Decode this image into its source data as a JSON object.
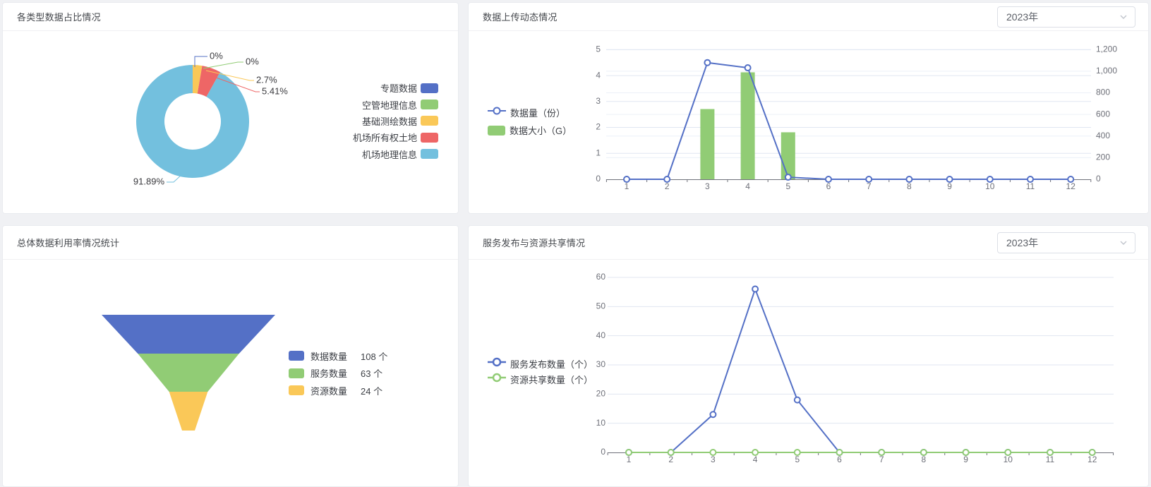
{
  "page": {
    "background": "#f0f1f4"
  },
  "palette": {
    "blue": "#5470C6",
    "green": "#91CC75",
    "yellow": "#FAC858",
    "red": "#EE6666",
    "light_blue": "#73C0DE"
  },
  "panels": {
    "pie": {
      "title": "各类型数据占比情况",
      "legend": [
        {
          "label": "专题数据",
          "color": "#5470C6"
        },
        {
          "label": "空管地理信息",
          "color": "#91CC75"
        },
        {
          "label": "基础测绘数据",
          "color": "#FAC858"
        },
        {
          "label": "机场所有权土地",
          "color": "#EE6666"
        },
        {
          "label": "机场地理信息",
          "color": "#73C0DE"
        }
      ]
    },
    "upload": {
      "title": "数据上传动态情况",
      "year_select": {
        "value": "2023年"
      },
      "legend": [
        {
          "label": "数据量（份）",
          "type": "line",
          "color": "#5470C6"
        },
        {
          "label": "数据大小（G）",
          "type": "bar",
          "color": "#91CC75"
        }
      ]
    },
    "funnel": {
      "title": "总体数据利用率情况统计",
      "legend": [
        {
          "label": "数据数量",
          "value": "108 个",
          "color": "#5470C6"
        },
        {
          "label": "服务数量",
          "value": "63 个",
          "color": "#91CC75"
        },
        {
          "label": "资源数量",
          "value": "24 个",
          "color": "#FAC858"
        }
      ]
    },
    "share": {
      "title": "服务发布与资源共享情况",
      "year_select": {
        "value": "2023年"
      },
      "legend": [
        {
          "label": "服务发布数量（个）",
          "color": "#5470C6"
        },
        {
          "label": "资源共享数量（个）",
          "color": "#91CC75"
        }
      ]
    }
  },
  "chart_data": [
    {
      "type": "pie",
      "title": "各类型数据占比情况",
      "labels": [
        "专题数据",
        "空管地理信息",
        "基础测绘数据",
        "机场所有权土地",
        "机场地理信息"
      ],
      "values_percent": [
        0,
        0,
        2.7,
        5.41,
        91.89
      ],
      "data_labels": [
        "0%",
        "0%",
        "2.7%",
        "5.41%",
        "91.89%"
      ],
      "colors": [
        "#5470C6",
        "#91CC75",
        "#FAC858",
        "#EE6666",
        "#73C0DE"
      ],
      "inner_radius_ratio": 0.5,
      "start_angle": "top",
      "direction": "clockwise",
      "legend_position": "right"
    },
    {
      "type": "bar+line",
      "title": "数据上传动态情况",
      "x": [
        1,
        2,
        3,
        4,
        5,
        6,
        7,
        8,
        9,
        10,
        11,
        12
      ],
      "series": [
        {
          "name": "数据量（份）",
          "type": "line",
          "axis": "left",
          "color": "#5470C6",
          "values": [
            0,
            0,
            4.5,
            4.3,
            0.08,
            0,
            0,
            0,
            0,
            0,
            0,
            0
          ]
        },
        {
          "name": "数据大小（G）",
          "type": "bar",
          "axis": "right",
          "color": "#91CC75",
          "values": [
            0,
            0,
            650,
            990,
            435,
            0,
            0,
            0,
            0,
            0,
            0,
            0
          ]
        }
      ],
      "left_axis": {
        "min": 0,
        "max": 5,
        "ticks": [
          0,
          1,
          2,
          3,
          4,
          5
        ]
      },
      "right_axis": {
        "min": 0,
        "max": 1200,
        "ticks": [
          "0",
          "200",
          "400",
          "600",
          "800",
          "1,000",
          "1,200"
        ]
      },
      "grid": true,
      "legend_position": "left"
    },
    {
      "type": "funnel",
      "title": "总体数据利用率情况统计",
      "labels": [
        "数据数量",
        "服务数量",
        "资源数量"
      ],
      "values": [
        108,
        63,
        24
      ],
      "unit": "个",
      "colors": [
        "#5470C6",
        "#91CC75",
        "#FAC858"
      ],
      "sort": "descending"
    },
    {
      "type": "line",
      "title": "服务发布与资源共享情况",
      "x": [
        1,
        2,
        3,
        4,
        5,
        6,
        7,
        8,
        9,
        10,
        11,
        12
      ],
      "series": [
        {
          "name": "服务发布数量（个）",
          "color": "#5470C6",
          "values": [
            0,
            0,
            13,
            56,
            18,
            0,
            0,
            0,
            0,
            0,
            0,
            0
          ]
        },
        {
          "name": "资源共享数量（个）",
          "color": "#91CC75",
          "values": [
            0,
            0,
            0,
            0,
            0,
            0,
            0,
            0,
            0,
            0,
            0,
            0
          ]
        }
      ],
      "y_axis": {
        "min": 0,
        "max": 60,
        "ticks": [
          0,
          10,
          20,
          30,
          40,
          50,
          60
        ]
      },
      "grid": true,
      "legend_position": "left"
    }
  ]
}
